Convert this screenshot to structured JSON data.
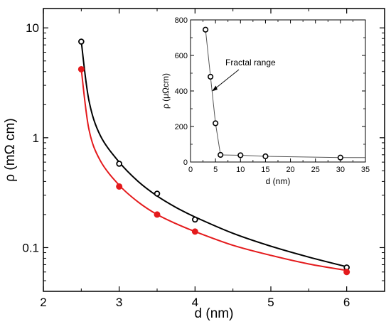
{
  "chart_data": [
    {
      "type": "scatter",
      "xlabel": "d (nm)",
      "ylabel": "ρ (mΩ cm)",
      "xlim": [
        2,
        6.5
      ],
      "ylim": [
        0.04,
        15
      ],
      "yscale": "log",
      "grid": false,
      "legend": "none",
      "xticks": [
        2,
        3,
        4,
        5,
        6
      ],
      "xtick_labels": [
        "2",
        "3",
        "4",
        "5",
        "6"
      ],
      "yticks": [
        0.1,
        1,
        10
      ],
      "ytick_labels": [
        "0.1",
        "1",
        "10"
      ],
      "series": [
        {
          "color": "#000000",
          "marker": "open-circle",
          "x": [
            2.5,
            3.0,
            3.5,
            4.0,
            6.0
          ],
          "y": [
            7.5,
            0.58,
            0.31,
            0.18,
            0.066
          ],
          "fit_x": [
            2.5,
            2.6,
            2.75,
            3.0,
            3.25,
            3.5,
            3.75,
            4.0,
            4.5,
            5.0,
            5.5,
            6.0
          ],
          "fit_y": [
            7.5,
            2.2,
            1.05,
            0.6,
            0.4,
            0.295,
            0.232,
            0.19,
            0.135,
            0.103,
            0.082,
            0.067
          ]
        },
        {
          "color": "#e41a1c",
          "marker": "filled-circle",
          "x": [
            2.5,
            3.0,
            3.5,
            4.0,
            6.0
          ],
          "y": [
            4.2,
            0.36,
            0.2,
            0.14,
            0.06
          ],
          "fit_x": [
            2.5,
            2.6,
            2.75,
            3.0,
            3.25,
            3.5,
            3.75,
            4.0,
            4.5,
            5.0,
            5.5,
            6.0
          ],
          "fit_y": [
            4.2,
            1.2,
            0.62,
            0.37,
            0.26,
            0.2,
            0.165,
            0.14,
            0.105,
            0.085,
            0.071,
            0.062
          ]
        }
      ]
    },
    {
      "type": "line",
      "xlabel": "d (nm)",
      "ylabel": "ρ (μΩcm)",
      "xlim": [
        0,
        35
      ],
      "ylim": [
        0,
        800
      ],
      "grid": false,
      "legend": "none",
      "xticks": [
        0,
        5,
        10,
        15,
        20,
        25,
        30,
        35
      ],
      "xtick_labels": [
        "0",
        "5",
        "10",
        "15",
        "20",
        "25",
        "30",
        "35"
      ],
      "yticks": [
        0,
        200,
        400,
        600,
        800
      ],
      "ytick_labels": [
        "0",
        "200",
        "400",
        "600",
        "800"
      ],
      "annotation": "Fractal range",
      "series": [
        {
          "color": "#000000",
          "marker": "open-circle",
          "x": [
            3,
            4,
            5,
            6,
            10,
            15,
            30
          ],
          "y": [
            745,
            480,
            218,
            40,
            38,
            32,
            25
          ],
          "connector_end": [
            35,
            25
          ]
        }
      ]
    }
  ]
}
